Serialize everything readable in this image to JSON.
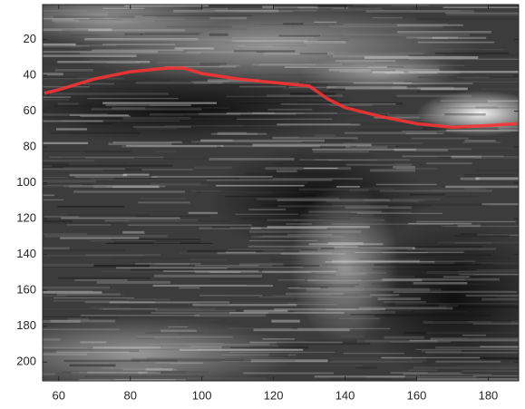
{
  "chart_data": {
    "type": "line",
    "x": [
      56,
      60,
      70,
      80,
      90,
      95,
      100,
      110,
      120,
      130,
      135,
      140,
      150,
      160,
      170,
      180,
      188
    ],
    "values": [
      50,
      48,
      42,
      38,
      36,
      36,
      39,
      42,
      44,
      46,
      53,
      58,
      63,
      67,
      69,
      68,
      67
    ],
    "color": "#ff3333",
    "xlim": [
      55.5,
      188.5
    ],
    "ylim": [
      0.5,
      210.5
    ],
    "y_reversed": true,
    "xticks": [
      60,
      80,
      100,
      120,
      140,
      160,
      180
    ],
    "yticks": [
      20,
      40,
      60,
      80,
      100,
      120,
      140,
      160,
      180,
      200
    ]
  }
}
